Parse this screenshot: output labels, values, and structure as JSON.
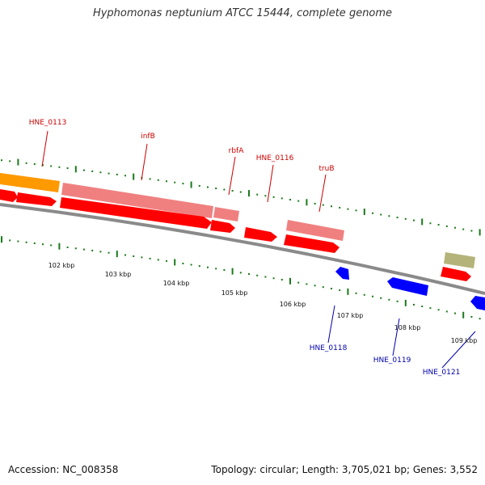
{
  "title": "Hyphomonas neptunium ATCC 15444, complete genome",
  "footer": {
    "accession": "Accession: NC_008358",
    "topology": "Topology: circular; Length: 3,705,021 bp; Genes: 3,552"
  },
  "colors": {
    "backbone": "#8a8a8a",
    "tick": "#1a7a1a",
    "forward_gene": "#ff0000",
    "forward_rna": "#f08080",
    "reverse_gene": "#0000ff",
    "upstream_feature": "#ff9900",
    "misc_feature": "#b4b47a",
    "forward_label": "#cc0000",
    "reverse_label": "#0000aa",
    "kbp_label": "#111111"
  },
  "scale_labels": [
    {
      "text": "102 kbp",
      "kbp": 102
    },
    {
      "text": "103 kbp",
      "kbp": 103
    },
    {
      "text": "104 kbp",
      "kbp": 104
    },
    {
      "text": "105 kbp",
      "kbp": 105
    },
    {
      "text": "106 kbp",
      "kbp": 106
    },
    {
      "text": "107 kbp",
      "kbp": 107
    },
    {
      "text": "108 kbp",
      "kbp": 108
    },
    {
      "text": "109 kbp",
      "kbp": 109
    }
  ],
  "genes": [
    {
      "name": "HNE_0113",
      "strand": "forward",
      "labeled": true
    },
    {
      "name": "infB",
      "strand": "forward",
      "labeled": true
    },
    {
      "name": "rbfA",
      "strand": "forward",
      "labeled": true
    },
    {
      "name": "HNE_0116",
      "strand": "forward",
      "labeled": true
    },
    {
      "name": "truB",
      "strand": "forward",
      "labeled": true
    },
    {
      "name": "HNE_0118",
      "strand": "reverse",
      "labeled": true
    },
    {
      "name": "HNE_0119",
      "strand": "reverse",
      "labeled": true
    },
    {
      "name": "HNE_0121",
      "strand": "reverse",
      "labeled": true
    }
  ]
}
